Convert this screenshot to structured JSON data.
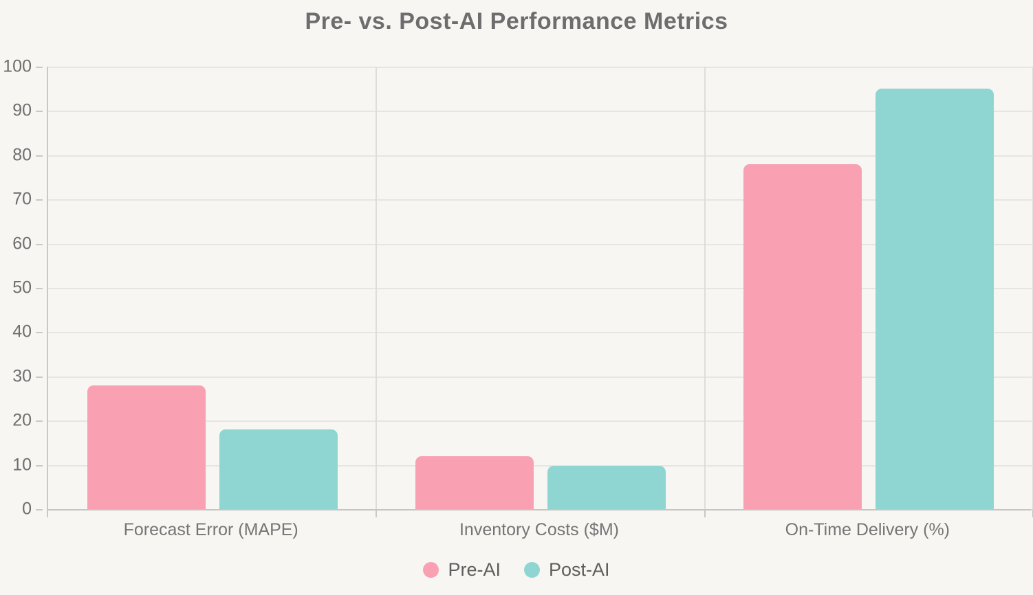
{
  "title": "Pre- vs. Post-AI Performance Metrics",
  "chart_data": {
    "type": "bar",
    "title": "Pre- vs. Post-AI Performance Metrics",
    "categories": [
      "Forecast Error (MAPE)",
      "Inventory Costs ($M)",
      "On-Time Delivery (%)"
    ],
    "series": [
      {
        "name": "Pre-AI",
        "color": "#F9A1B2",
        "values": [
          28,
          12,
          78
        ]
      },
      {
        "name": "Post-AI",
        "color": "#8FD6D2",
        "values": [
          18,
          9.8,
          95
        ]
      }
    ],
    "xlabel": "",
    "ylabel": "",
    "ylim": [
      0,
      100
    ],
    "ytick_step": 10,
    "ytick_labels": [
      "0",
      "10",
      "20",
      "30",
      "40",
      "50",
      "60",
      "70",
      "80",
      "90",
      "100"
    ],
    "grid": true,
    "legend_position": "bottom"
  },
  "colors": {
    "background": "#F7F6F3",
    "title_text": "#6D6D6D",
    "axis_text": "#6E6E6E",
    "category_text": "#757575",
    "legend_text": "#5E5E5E",
    "gridline": "#E6E5E2",
    "axis_line": "#C9C8C5",
    "pre_ai": "#F9A1B2",
    "post_ai": "#8FD6D2"
  }
}
